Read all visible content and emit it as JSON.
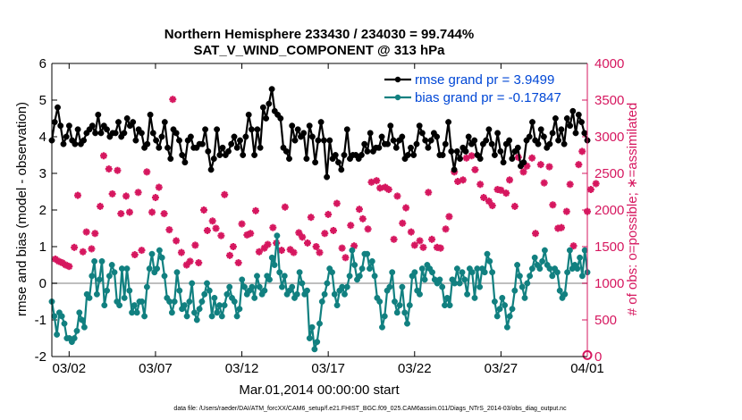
{
  "chart_data": {
    "type": "line",
    "title": "Northern Hemisphere 233430 / 234030 = 99.744%",
    "subtitle": "SAT_V_WIND_COMPONENT @ 313 hPa",
    "xlabel": "Mar.01,2014 00:00:00 start",
    "ylabel_left": "rmse and bias (model - observation)",
    "ylabel_right": "# of obs: o=possible; ∗=assimilated",
    "footer": "data file: /Users/raeder/DAI/ATM_forcXX/CAM6_setup/f.e21.FHIST_BGC.f09_025.CAM6assim.011/Diags_NTrS_2014-03/obs_diag_output.nc",
    "x_tick_labels": [
      "03/02",
      "03/07",
      "03/12",
      "03/17",
      "03/22",
      "03/27",
      "04/01"
    ],
    "x_tick_days": [
      1,
      6,
      11,
      16,
      21,
      26,
      31
    ],
    "xlim_days": [
      0,
      31
    ],
    "ylim_left": [
      -2,
      6
    ],
    "yticks_left": [
      "-2",
      "-1",
      "0",
      "1",
      "2",
      "3",
      "4",
      "5",
      "6"
    ],
    "ylim_right": [
      0,
      4000
    ],
    "yticks_right": [
      "0",
      "500",
      "1000",
      "1500",
      "2000",
      "2500",
      "3000",
      "3500",
      "4000"
    ],
    "grid": false,
    "legend_placement": "top-right",
    "colors": {
      "rmse": "#000000",
      "bias": "#118080",
      "obs": "#d6175f",
      "zero_line": "#bfbfbf",
      "right_axis": "#d6175f",
      "legend_text": "#0047d6"
    },
    "series": [
      {
        "name": "rmse grand pr = 3.9499",
        "axis": "left",
        "values": [
          3.9,
          4.4,
          4.8,
          4.3,
          3.8,
          4.0,
          4.3,
          3.9,
          3.8,
          4.2,
          3.8,
          3.9,
          4.1,
          4.2,
          4.3,
          4.1,
          4.6,
          4.1,
          4.3,
          4.2,
          4.0,
          4.1,
          4.1,
          4.4,
          4.0,
          4.1,
          4.5,
          4.3,
          4.4,
          3.9,
          4.2,
          4.1,
          3.7,
          3.8,
          4.6,
          4.1,
          3.9,
          3.7,
          4.0,
          4.4,
          3.7,
          3.4,
          4.2,
          4.1,
          3.9,
          3.5,
          3.3,
          3.9,
          4.0,
          3.7,
          3.7,
          3.8,
          3.8,
          4.2,
          3.6,
          3.1,
          3.4,
          4.2,
          3.5,
          3.7,
          3.5,
          3.6,
          3.8,
          4.0,
          3.7,
          3.9,
          3.5,
          4.0,
          4.6,
          4.2,
          3.5,
          4.2,
          3.7,
          4.8,
          4.5,
          4.9,
          5.3,
          4.7,
          4.6,
          4.5,
          3.7,
          3.6,
          3.4,
          4.3,
          3.9,
          4.2,
          4.0,
          4.1,
          3.4,
          4.3,
          4.0,
          3.3,
          3.9,
          4.4,
          3.9,
          2.9,
          3.9,
          3.4,
          3.5,
          3.3,
          3.1,
          3.5,
          4.2,
          3.4,
          3.5,
          3.5,
          3.4,
          3.5,
          3.8,
          3.6,
          4.1,
          3.6,
          3.7,
          3.7,
          4.0,
          3.8,
          3.8,
          4.3,
          3.9,
          3.7,
          3.9,
          4.0,
          3.4,
          3.5,
          3.7,
          3.5,
          3.8,
          4.3,
          4.1,
          3.9,
          3.7,
          3.9,
          4.1,
          4.0,
          3.5,
          3.5,
          3.8,
          4.4,
          3.6,
          3.1,
          3.6,
          3.4,
          3.7,
          3.6,
          4.0,
          3.8,
          3.9,
          3.5,
          3.4,
          3.8,
          3.9,
          4.2,
          3.8,
          3.5,
          4.1,
          3.6,
          3.3,
          3.8,
          3.9,
          3.4,
          3.6,
          3.7,
          3.2,
          3.3,
          3.9,
          4.0,
          4.4,
          3.9,
          3.8,
          4.2,
          4.0,
          3.7,
          3.8,
          4.1,
          4.5,
          3.9,
          4.2,
          3.8,
          4.5,
          4.3,
          4.7,
          4.1,
          4.6,
          4.4,
          4.1,
          3.9
        ],
        "marker": "filled-circle"
      },
      {
        "name": "bias grand pr = -0.17847",
        "axis": "left",
        "values": [
          -0.5,
          -0.9,
          -1.4,
          -0.8,
          -0.9,
          -1.1,
          -1.5,
          -1.5,
          -1.6,
          -1.5,
          -1.3,
          -0.8,
          -1.0,
          -1.2,
          -0.3,
          -0.4,
          0.2,
          0.6,
          -0.3,
          0.1,
          0.6,
          -0.6,
          -0.2,
          0.2,
          0.5,
          0.3,
          -0.5,
          -0.6,
          0.4,
          -0.4,
          0.4,
          -0.2,
          -0.8,
          -0.6,
          -0.8,
          -0.5,
          -0.5,
          -0.9,
          -0.1,
          0.4,
          0.8,
          0.3,
          0.4,
          0.9,
          0.7,
          0.2,
          -0.4,
          -0.5,
          -0.8,
          -0.5,
          0.3,
          -0.2,
          -0.7,
          -0.6,
          -0.9,
          -0.5,
          0.0,
          -0.8,
          -1.0,
          -0.7,
          -0.5,
          -0.3,
          0.0,
          -0.2,
          -0.9,
          -0.4,
          -0.8,
          -0.6,
          -0.9,
          -0.6,
          -0.3,
          -0.1,
          -0.4,
          -0.5,
          -0.9,
          -0.7,
          0.1,
          -0.1,
          -0.3,
          -0.2,
          -0.1,
          -0.4,
          0.2,
          -0.1,
          -0.3,
          -0.2,
          0.2,
          0.1,
          0.7,
          0.5,
          1.3,
          0.3,
          -0.1,
          0.2,
          -0.3,
          -0.2,
          -0.1,
          -0.4,
          -0.3,
          0.3,
          0.0,
          -0.3,
          -0.2,
          -1.5,
          -1.2,
          -1.8,
          -1.6,
          -1.1,
          -0.5,
          -0.3,
          0.0,
          0.4,
          0.3,
          -0.3,
          -0.6,
          -0.2,
          -0.1,
          -0.3,
          -0.1,
          0.2,
          0.9,
          0.5,
          0.1,
          0.2,
          0.4,
          0.8,
          0.8,
          0.4,
          0.6,
          0.2,
          -0.4,
          -0.5,
          -1.2,
          -0.9,
          -0.2,
          -0.1,
          0.3,
          -0.5,
          -0.8,
          -0.6,
          -0.1,
          -0.8,
          -1.1,
          -0.6,
          0.2,
          0.3,
          -0.2,
          -0.3,
          0.4,
          0.1,
          0.5,
          0.4,
          0.3,
          0.1,
          0.0,
          0.1,
          -0.1,
          -0.6,
          -0.4,
          -0.6,
          0.1,
          0.0,
          0.4,
          0.0,
          0.3,
          0.1,
          -0.3,
          0.4,
          0.3,
          -0.4,
          0.4,
          -0.1,
          0.4,
          0.3,
          0.8,
          0.6,
          0.3,
          -0.5,
          -0.9,
          -0.7,
          -0.4,
          -0.6,
          -1.2,
          -0.9,
          -0.7,
          -0.2,
          0.5,
          0.2,
          -0.1,
          -0.4,
          0.0,
          0.2,
          0.4,
          0.7,
          0.5,
          0.4,
          0.6,
          0.9,
          0.5,
          0.4,
          0.2,
          0.4,
          0.3,
          -0.2,
          -0.4,
          -0.3,
          0.3,
          0.9,
          0.4,
          0.5,
          0.4,
          0.7,
          0.2,
          0.9,
          0.3
        ],
        "marker": "filled-circle"
      }
    ],
    "obs_assimilated": {
      "axis": "right",
      "marker": "asterisk",
      "points": [
        [
          0.2,
          1330
        ],
        [
          0.4,
          1300
        ],
        [
          0.6,
          1280
        ],
        [
          0.8,
          1250
        ],
        [
          1.0,
          1230
        ],
        [
          1.3,
          1490
        ],
        [
          1.5,
          2200
        ],
        [
          1.8,
          1430
        ],
        [
          2.0,
          1700
        ],
        [
          2.3,
          1470
        ],
        [
          2.5,
          1680
        ],
        [
          2.8,
          2050
        ],
        [
          3.0,
          2740
        ],
        [
          3.3,
          2560
        ],
        [
          3.5,
          2220
        ],
        [
          3.8,
          2540
        ],
        [
          4.0,
          1950
        ],
        [
          4.3,
          2190
        ],
        [
          4.5,
          1970
        ],
        [
          4.8,
          1390
        ],
        [
          5.0,
          2240
        ],
        [
          5.2,
          1450
        ],
        [
          5.5,
          2520
        ],
        [
          5.8,
          1970
        ],
        [
          6.0,
          2170
        ],
        [
          6.2,
          2310
        ],
        [
          6.5,
          1950
        ],
        [
          6.8,
          1730
        ],
        [
          7.0,
          3510
        ],
        [
          7.2,
          1580
        ],
        [
          7.5,
          1420
        ],
        [
          7.8,
          1250
        ],
        [
          8.0,
          1300
        ],
        [
          8.3,
          1520
        ],
        [
          8.5,
          1280
        ],
        [
          8.8,
          2000
        ],
        [
          9.0,
          1720
        ],
        [
          9.3,
          1850
        ],
        [
          9.5,
          1750
        ],
        [
          9.8,
          1650
        ],
        [
          10.0,
          2210
        ],
        [
          10.3,
          1380
        ],
        [
          10.5,
          1500
        ],
        [
          10.8,
          1280
        ],
        [
          11.0,
          1810
        ],
        [
          11.3,
          1660
        ],
        [
          11.5,
          1680
        ],
        [
          11.8,
          1990
        ],
        [
          12.0,
          1430
        ],
        [
          12.3,
          1480
        ],
        [
          12.5,
          1530
        ],
        [
          12.8,
          1760
        ],
        [
          13.0,
          1550
        ],
        [
          13.3,
          1450
        ],
        [
          13.5,
          2040
        ],
        [
          13.8,
          1460
        ],
        [
          14.0,
          1420
        ],
        [
          14.3,
          1690
        ],
        [
          14.5,
          1630
        ],
        [
          14.8,
          1550
        ],
        [
          15.0,
          1900
        ],
        [
          15.3,
          1500
        ],
        [
          15.5,
          1420
        ],
        [
          15.8,
          1680
        ],
        [
          16.0,
          1940
        ],
        [
          16.3,
          1720
        ],
        [
          16.5,
          2090
        ],
        [
          16.8,
          1480
        ],
        [
          17.0,
          1350
        ],
        [
          17.3,
          1790
        ],
        [
          17.5,
          1510
        ],
        [
          17.8,
          2010
        ],
        [
          18.0,
          1880
        ],
        [
          18.3,
          1740
        ],
        [
          18.5,
          2380
        ],
        [
          18.8,
          2400
        ],
        [
          19.0,
          2300
        ],
        [
          19.3,
          2310
        ],
        [
          19.5,
          2280
        ],
        [
          19.8,
          1600
        ],
        [
          20.0,
          2190
        ],
        [
          20.3,
          1820
        ],
        [
          20.5,
          2030
        ],
        [
          20.8,
          1700
        ],
        [
          21.0,
          1520
        ],
        [
          21.3,
          1580
        ],
        [
          21.5,
          1490
        ],
        [
          21.8,
          2240
        ],
        [
          22.0,
          1600
        ],
        [
          22.3,
          1490
        ],
        [
          22.5,
          1480
        ],
        [
          22.8,
          1740
        ],
        [
          23.0,
          1910
        ],
        [
          23.3,
          2520
        ],
        [
          23.5,
          2390
        ],
        [
          23.8,
          2410
        ],
        [
          24.0,
          2710
        ],
        [
          24.3,
          2740
        ],
        [
          24.5,
          2550
        ],
        [
          24.8,
          2350
        ],
        [
          25.0,
          2170
        ],
        [
          25.3,
          2120
        ],
        [
          25.5,
          2060
        ],
        [
          25.8,
          2280
        ],
        [
          26.0,
          2270
        ],
        [
          26.3,
          2230
        ],
        [
          26.5,
          2410
        ],
        [
          26.8,
          2050
        ],
        [
          27.0,
          2720
        ],
        [
          27.3,
          2520
        ],
        [
          27.5,
          2600
        ],
        [
          27.8,
          2710
        ],
        [
          28.0,
          1680
        ],
        [
          28.3,
          2620
        ],
        [
          28.5,
          2370
        ],
        [
          28.8,
          2590
        ],
        [
          29.0,
          2070
        ],
        [
          29.3,
          1750
        ],
        [
          29.5,
          1760
        ],
        [
          29.8,
          1980
        ],
        [
          30.0,
          2350
        ],
        [
          30.2,
          1510
        ],
        [
          30.5,
          2620
        ],
        [
          30.7,
          2800
        ],
        [
          31.0,
          1980
        ],
        [
          31.2,
          2280
        ],
        [
          31.5,
          2360
        ]
      ]
    },
    "obs_possible": {
      "axis": "right",
      "marker": "circle",
      "points": [
        [
          31.0,
          20
        ]
      ]
    },
    "legend": [
      {
        "key": "rmse",
        "label": "rmse grand pr = 3.9499"
      },
      {
        "key": "bias",
        "label": "bias grand pr = -0.17847"
      }
    ]
  }
}
